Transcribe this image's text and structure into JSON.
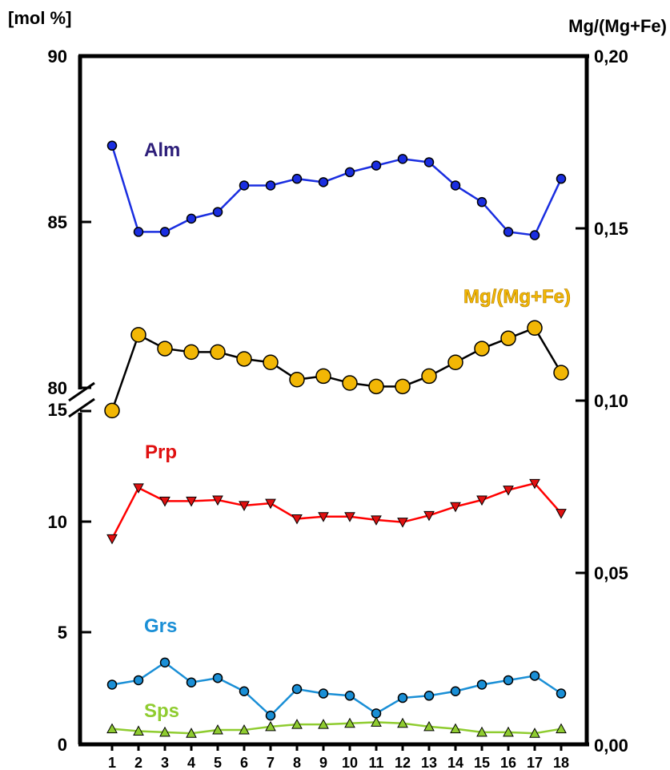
{
  "chart_data": {
    "type": "line",
    "left_axis": {
      "unit_label": "[mol %]",
      "upper_ticks": [
        "90",
        "85",
        "80"
      ],
      "lower_ticks": [
        "15",
        "10",
        "5",
        "0"
      ],
      "upper_range": [
        80,
        90
      ],
      "lower_range": [
        0,
        15
      ]
    },
    "right_axis": {
      "label": "Mg/(Mg+Fe)",
      "ticks": [
        "0,20",
        "0,15",
        "0,10",
        "0,05",
        "0,00"
      ],
      "range": [
        0.0,
        0.2
      ]
    },
    "x": [
      1,
      2,
      3,
      4,
      5,
      6,
      7,
      8,
      9,
      10,
      11,
      12,
      13,
      14,
      15,
      16,
      17,
      18
    ],
    "series": [
      {
        "name": "Alm",
        "axis": "left-upper",
        "color": "#1a2ee0",
        "marker_fill": "#1a2ee0",
        "marker": "circle",
        "label_color": "#2e1f7a",
        "values": [
          87.3,
          84.7,
          84.7,
          85.1,
          85.3,
          86.1,
          86.1,
          86.3,
          86.2,
          86.5,
          86.7,
          86.9,
          86.8,
          86.1,
          85.6,
          84.7,
          84.6,
          86.3
        ]
      },
      {
        "name": "Mg/(Mg+Fe)",
        "axis": "right",
        "color": "#000000",
        "marker_fill": "#f2b705",
        "marker": "circle-large",
        "label_color": "#f2b705",
        "values": [
          0.097,
          0.119,
          0.115,
          0.114,
          0.114,
          0.112,
          0.111,
          0.106,
          0.107,
          0.105,
          0.104,
          0.104,
          0.107,
          0.111,
          0.115,
          0.118,
          0.121,
          0.108
        ]
      },
      {
        "name": "Prp",
        "axis": "left-lower",
        "color": "#ff0000",
        "marker_fill": "#e01010",
        "marker": "triangle-down",
        "label_color": "#e01010",
        "values": [
          9.3,
          11.6,
          11.0,
          11.0,
          11.05,
          10.8,
          10.9,
          10.2,
          10.3,
          10.3,
          10.15,
          10.05,
          10.35,
          10.75,
          11.05,
          11.5,
          11.8,
          10.45
        ]
      },
      {
        "name": "Grs",
        "axis": "left-lower",
        "color": "#1a8fd6",
        "marker_fill": "#1a8fd6",
        "marker": "circle",
        "label_color": "#1a8fd6",
        "values": [
          2.7,
          2.9,
          3.7,
          2.8,
          3.0,
          2.4,
          1.3,
          2.5,
          2.3,
          2.2,
          1.4,
          2.1,
          2.2,
          2.4,
          2.7,
          2.9,
          3.1,
          2.3
        ]
      },
      {
        "name": "Sps",
        "axis": "left-lower",
        "color": "#8fcc30",
        "marker_fill": "#8fcc30",
        "marker": "triangle-up",
        "label_color": "#8fcc30",
        "values": [
          0.7,
          0.6,
          0.55,
          0.5,
          0.65,
          0.65,
          0.8,
          0.9,
          0.9,
          0.95,
          1.0,
          0.95,
          0.8,
          0.7,
          0.55,
          0.55,
          0.5,
          0.7
        ]
      }
    ],
    "grid": false,
    "legend": "inline labels"
  }
}
